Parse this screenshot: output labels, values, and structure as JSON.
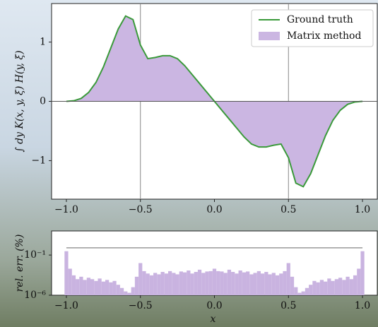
{
  "chart_data": [
    {
      "type": "line",
      "ylabel": "∫ dy K(x, y, ξ) H(y, ξ)",
      "x": [
        -1,
        -0.95,
        -0.9,
        -0.85,
        -0.8,
        -0.75,
        -0.7,
        -0.65,
        -0.6,
        -0.55,
        -0.5,
        -0.45,
        -0.4,
        -0.35,
        -0.3,
        -0.25,
        -0.2,
        -0.15,
        -0.1,
        -0.05,
        0,
        0.05,
        0.1,
        0.15,
        0.2,
        0.25,
        0.3,
        0.35,
        0.4,
        0.45,
        0.5,
        0.55,
        0.6,
        0.65,
        0.7,
        0.75,
        0.8,
        0.85,
        0.9,
        0.95,
        1
      ],
      "series": [
        {
          "name": "Ground truth",
          "color": "#3a9a3a",
          "style": "line",
          "values": [
            0,
            0.01,
            0.05,
            0.15,
            0.32,
            0.58,
            0.9,
            1.22,
            1.44,
            1.38,
            0.95,
            0.72,
            0.74,
            0.77,
            0.77,
            0.72,
            0.6,
            0.45,
            0.3,
            0.15,
            0,
            -0.15,
            -0.3,
            -0.45,
            -0.6,
            -0.72,
            -0.77,
            -0.77,
            -0.74,
            -0.72,
            -0.95,
            -1.38,
            -1.44,
            -1.22,
            -0.9,
            -0.58,
            -0.32,
            -0.15,
            -0.05,
            -0.01,
            0
          ]
        },
        {
          "name": "Matrix method",
          "color": "#cbb6e2",
          "style": "area",
          "values": [
            0,
            0.01,
            0.05,
            0.15,
            0.32,
            0.58,
            0.9,
            1.22,
            1.44,
            1.38,
            0.95,
            0.72,
            0.74,
            0.77,
            0.77,
            0.72,
            0.6,
            0.45,
            0.3,
            0.15,
            0,
            -0.15,
            -0.3,
            -0.45,
            -0.6,
            -0.72,
            -0.77,
            -0.77,
            -0.74,
            -0.72,
            -0.95,
            -1.38,
            -1.44,
            -1.22,
            -0.9,
            -0.58,
            -0.32,
            -0.15,
            -0.05,
            -0.01,
            0
          ]
        }
      ],
      "xlim": [
        -1.1,
        1.1
      ],
      "xticks": [
        {
          "value": -1,
          "label": "−1.0"
        },
        {
          "value": -0.5,
          "label": "−0.5"
        },
        {
          "value": 0,
          "label": "0.0"
        },
        0.5,
        {
          "value": 1,
          "label": "1.0"
        }
      ],
      "ylim": [
        -1.65,
        1.65
      ],
      "yticks": [
        1,
        0,
        {
          "value": -1,
          "label": "−1"
        }
      ],
      "vlines": [
        -0.5,
        0.5
      ],
      "legend": "upper right"
    },
    {
      "type": "bar",
      "ylabel": "rel. err. (%)",
      "xlabel": "x",
      "log_y": true,
      "color": "#c9b3e0",
      "x": [
        -1,
        -0.975,
        -0.95,
        -0.925,
        -0.9,
        -0.875,
        -0.85,
        -0.825,
        -0.8,
        -0.775,
        -0.75,
        -0.725,
        -0.7,
        -0.675,
        -0.65,
        -0.625,
        -0.6,
        -0.575,
        -0.55,
        -0.525,
        -0.5,
        -0.475,
        -0.45,
        -0.425,
        -0.4,
        -0.375,
        -0.35,
        -0.325,
        -0.3,
        -0.275,
        -0.25,
        -0.225,
        -0.2,
        -0.175,
        -0.15,
        -0.125,
        -0.1,
        -0.075,
        -0.05,
        -0.025,
        0,
        0.025,
        0.05,
        0.075,
        0.1,
        0.125,
        0.15,
        0.175,
        0.2,
        0.225,
        0.25,
        0.275,
        0.3,
        0.325,
        0.35,
        0.375,
        0.4,
        0.425,
        0.45,
        0.475,
        0.5,
        0.525,
        0.55,
        0.575,
        0.6,
        0.625,
        0.65,
        0.675,
        0.7,
        0.725,
        0.75,
        0.775,
        0.8,
        0.825,
        0.85,
        0.875,
        0.9,
        0.925,
        0.95,
        0.975,
        1
      ],
      "values": [
        0.3,
        0.002,
        0.0003,
        0.0001,
        0.0002,
        8e-05,
        0.00015,
        0.0001,
        6e-05,
        0.00012,
        5e-05,
        8e-05,
        4e-05,
        6e-05,
        2e-05,
        8e-06,
        3e-06,
        2e-06,
        1e-05,
        0.0002,
        0.01,
        0.001,
        0.0005,
        0.0003,
        0.0006,
        0.0004,
        0.0008,
        0.0005,
        0.001,
        0.0006,
        0.0004,
        0.0009,
        0.0007,
        0.0012,
        0.0005,
        0.0008,
        0.0015,
        0.0006,
        0.0009,
        0.001,
        0.002,
        0.001,
        0.0009,
        0.0006,
        0.0015,
        0.0008,
        0.0005,
        0.0012,
        0.0007,
        0.0009,
        0.0004,
        0.0006,
        0.001,
        0.0005,
        0.0008,
        0.0004,
        0.0006,
        0.0003,
        0.0005,
        0.001,
        0.01,
        0.0002,
        1e-05,
        2e-06,
        3e-06,
        8e-06,
        2e-05,
        6e-05,
        4e-05,
        8e-05,
        5e-05,
        0.00012,
        6e-05,
        0.0001,
        0.00015,
        8e-05,
        0.0002,
        0.0001,
        0.0003,
        0.002,
        0.3
      ],
      "xlim": [
        -1.1,
        1.1
      ],
      "xticks": [
        {
          "value": -1,
          "label": "−1.0"
        },
        {
          "value": -0.5,
          "label": "−0.5"
        },
        {
          "value": 0,
          "label": "0.0"
        },
        0.5,
        {
          "value": 1,
          "label": "1.0"
        }
      ],
      "ylim": [
        1e-06,
        100
      ],
      "yticks": [
        {
          "value": 0.1,
          "label": "10⁻¹"
        },
        {
          "value": 1e-06,
          "label": "10⁻⁶"
        }
      ],
      "hline": 0.8
    }
  ]
}
